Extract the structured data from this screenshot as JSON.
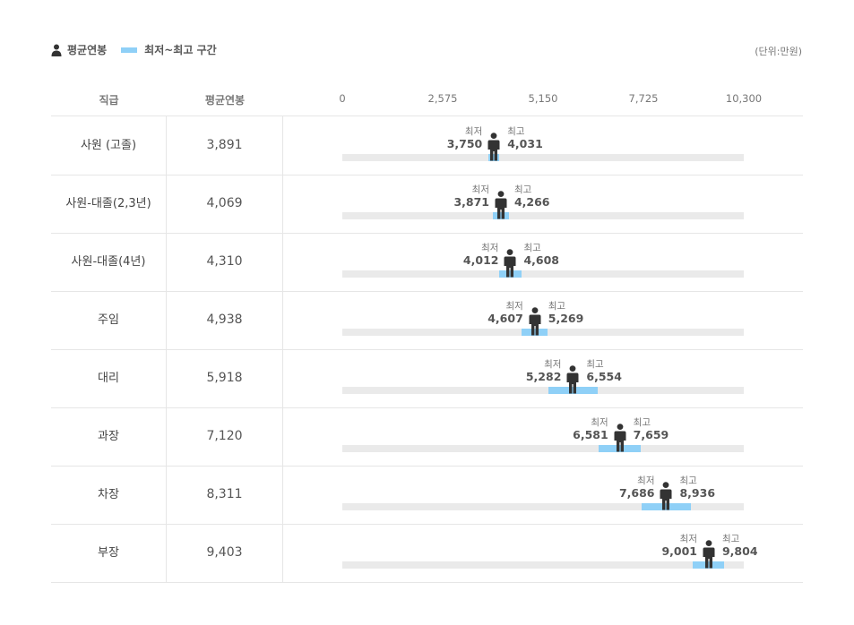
{
  "legend": {
    "avg_label": "평균연봉",
    "range_label": "최저~최고 구간",
    "unit": "(단위:만원)"
  },
  "header": {
    "rank": "직급",
    "avg": "평균연봉"
  },
  "labels": {
    "min": "최저",
    "max": "최고"
  },
  "colors": {
    "range": "#8fd0f7",
    "track": "#eaeaea",
    "figure": "#333333"
  },
  "chart_data": {
    "type": "bar",
    "xlim": [
      0,
      10300
    ],
    "ticks": [
      "0",
      "2,575",
      "5,150",
      "7,725",
      "10,300"
    ],
    "tick_values": [
      0,
      2575,
      5150,
      7725,
      10300
    ],
    "rows": [
      {
        "rank": "사원 (고졸)",
        "avg": 3891,
        "avg_label": "3,891",
        "min": 3750,
        "min_label": "3,750",
        "max": 4031,
        "max_label": "4,031"
      },
      {
        "rank": "사원-대졸(2,3년)",
        "avg": 4069,
        "avg_label": "4,069",
        "min": 3871,
        "min_label": "3,871",
        "max": 4266,
        "max_label": "4,266"
      },
      {
        "rank": "사원-대졸(4년)",
        "avg": 4310,
        "avg_label": "4,310",
        "min": 4012,
        "min_label": "4,012",
        "max": 4608,
        "max_label": "4,608"
      },
      {
        "rank": "주임",
        "avg": 4938,
        "avg_label": "4,938",
        "min": 4607,
        "min_label": "4,607",
        "max": 5269,
        "max_label": "5,269"
      },
      {
        "rank": "대리",
        "avg": 5918,
        "avg_label": "5,918",
        "min": 5282,
        "min_label": "5,282",
        "max": 6554,
        "max_label": "6,554"
      },
      {
        "rank": "과장",
        "avg": 7120,
        "avg_label": "7,120",
        "min": 6581,
        "min_label": "6,581",
        "max": 7659,
        "max_label": "7,659"
      },
      {
        "rank": "차장",
        "avg": 8311,
        "avg_label": "8,311",
        "min": 7686,
        "min_label": "7,686",
        "max": 8936,
        "max_label": "8,936"
      },
      {
        "rank": "부장",
        "avg": 9403,
        "avg_label": "9,403",
        "min": 9001,
        "min_label": "9,001",
        "max": 9804,
        "max_label": "9,804"
      }
    ]
  }
}
